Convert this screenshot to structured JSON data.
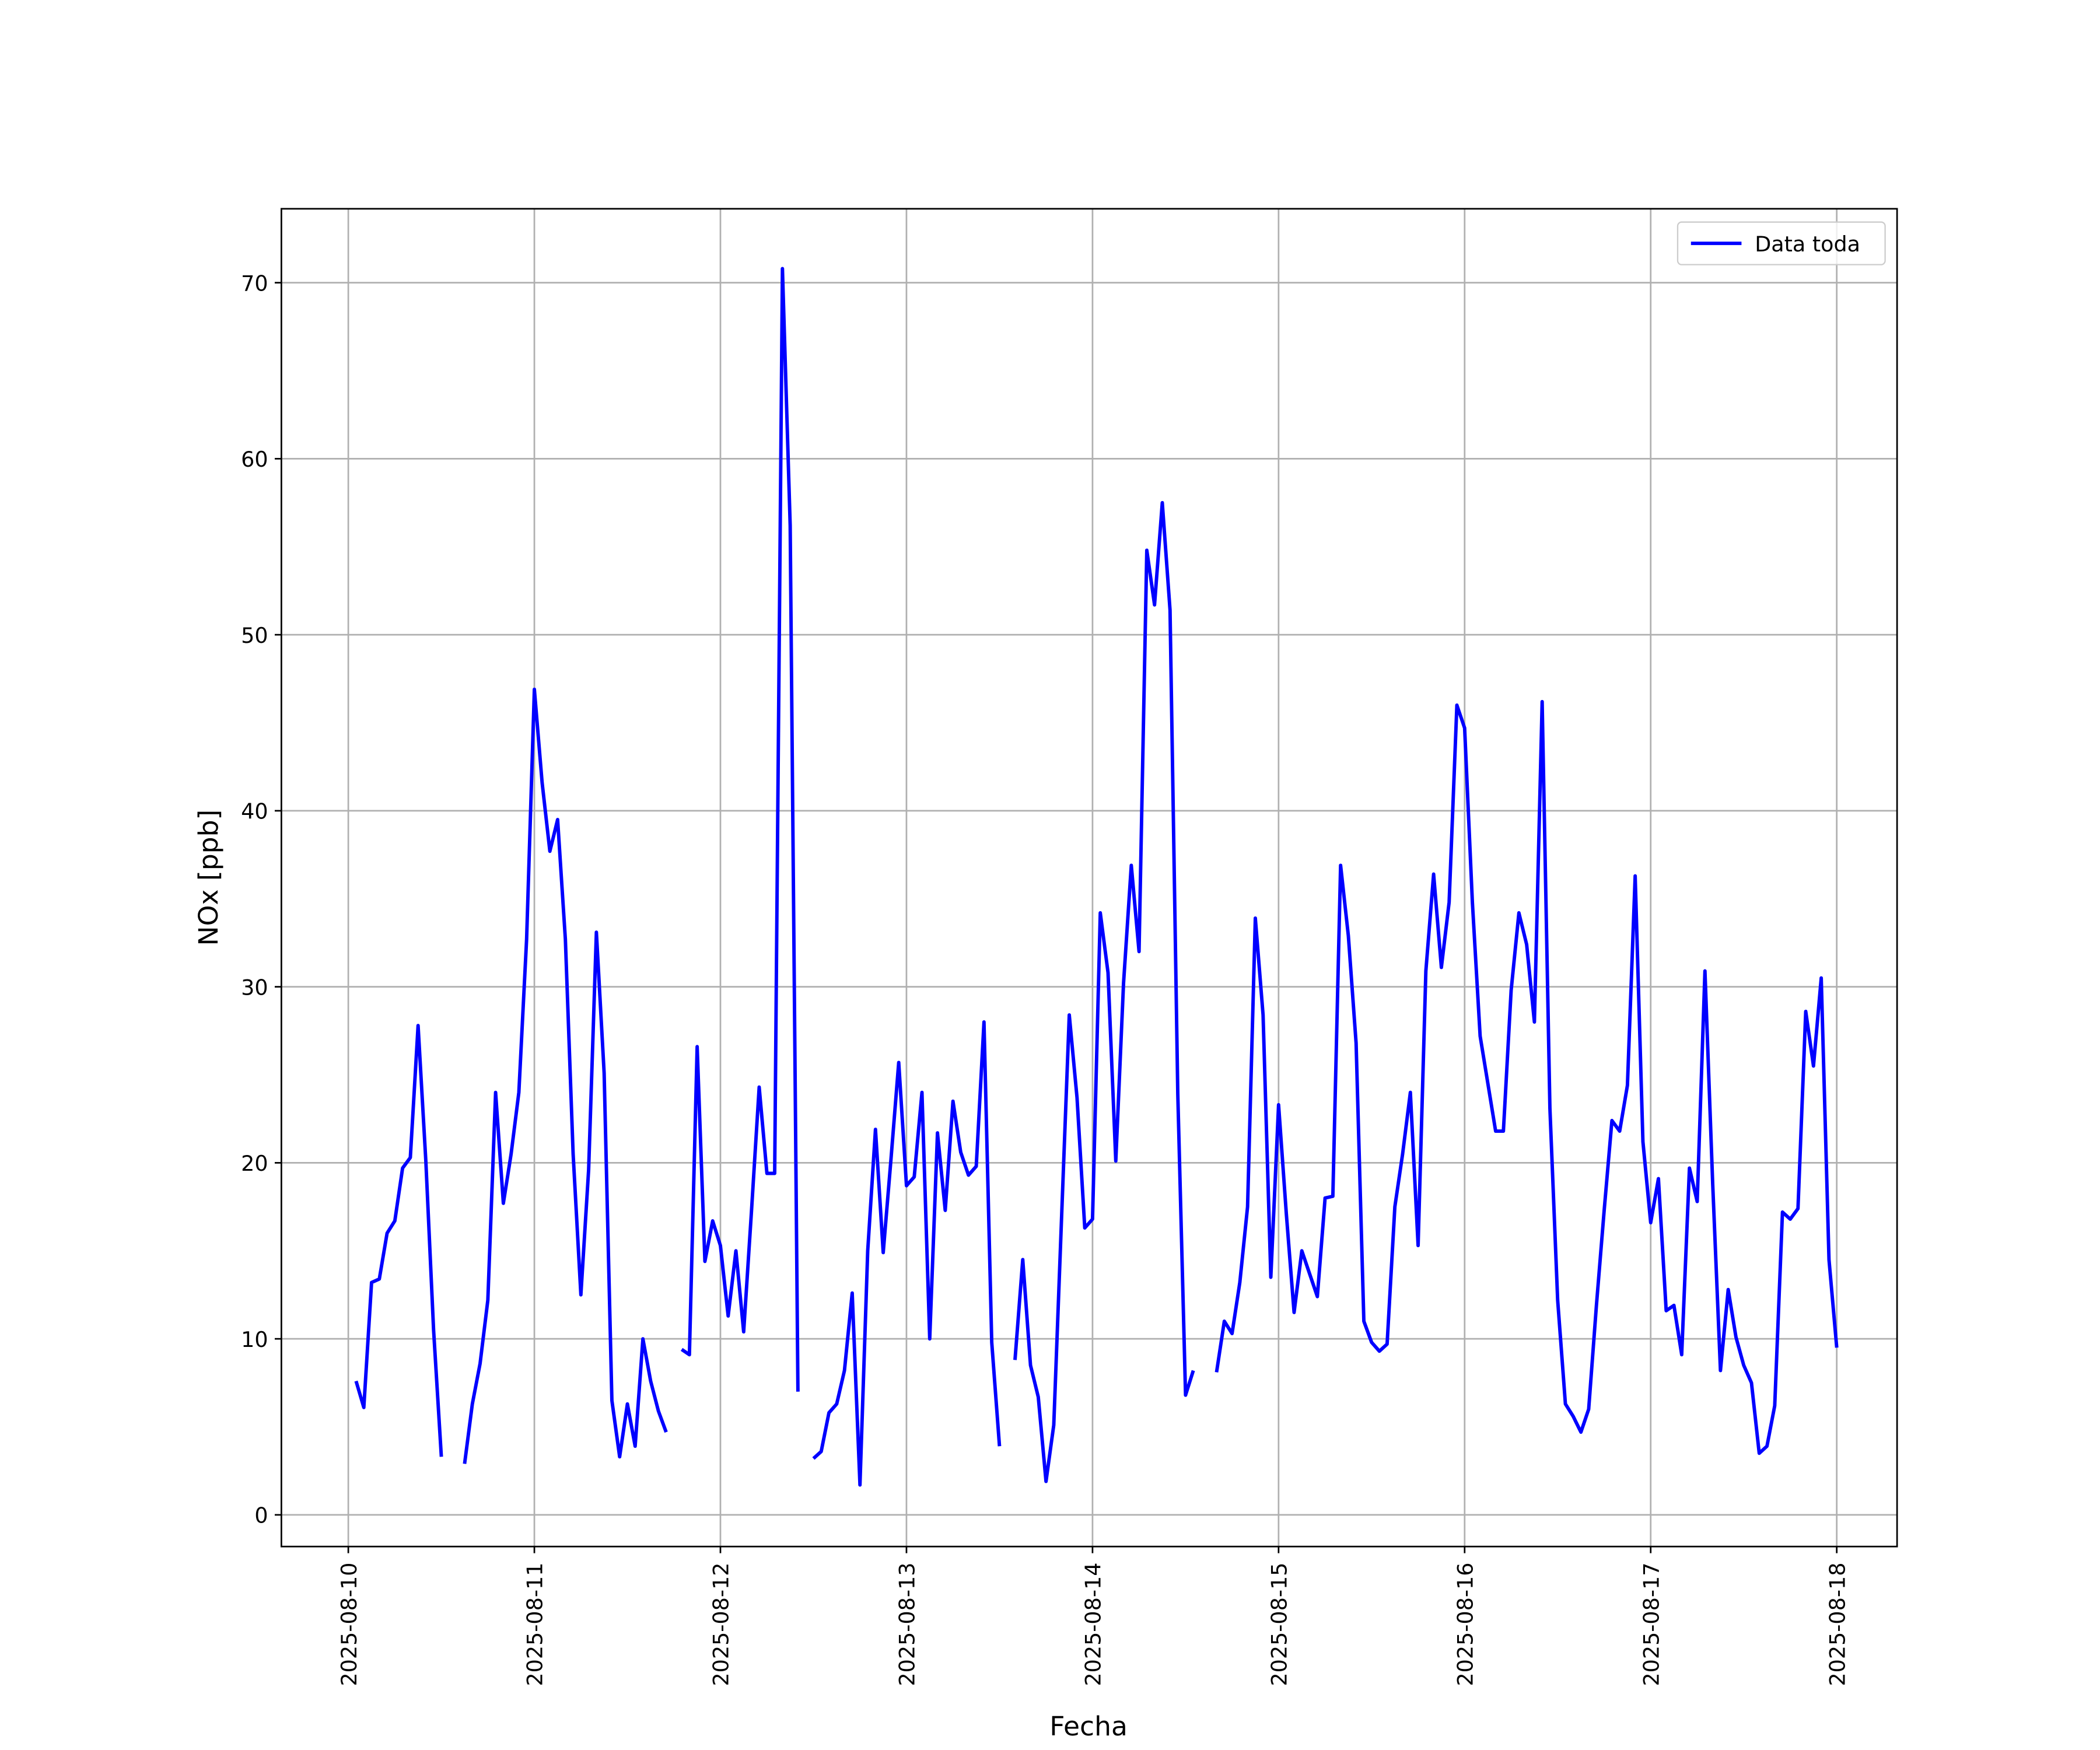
{
  "chart_data": {
    "type": "line",
    "x_label": "Fecha",
    "y_label": "NOx [ppb]",
    "x": [
      "2025-08-10T01:00",
      "2025-08-10T02:00",
      "2025-08-10T03:00",
      "2025-08-10T04:00",
      "2025-08-10T05:00",
      "2025-08-10T06:00",
      "2025-08-10T07:00",
      "2025-08-10T08:00",
      "2025-08-10T09:00",
      "2025-08-10T10:00",
      "2025-08-10T11:00",
      "2025-08-10T12:00",
      "2025-08-10T13:00",
      "2025-08-10T14:00",
      "2025-08-10T15:00",
      "2025-08-10T16:00",
      "2025-08-10T17:00",
      "2025-08-10T18:00",
      "2025-08-10T19:00",
      "2025-08-10T20:00",
      "2025-08-10T21:00",
      "2025-08-10T22:00",
      "2025-08-10T23:00",
      "2025-08-11T00:00",
      "2025-08-11T01:00",
      "2025-08-11T02:00",
      "2025-08-11T03:00",
      "2025-08-11T04:00",
      "2025-08-11T05:00",
      "2025-08-11T06:00",
      "2025-08-11T07:00",
      "2025-08-11T08:00",
      "2025-08-11T09:00",
      "2025-08-11T10:00",
      "2025-08-11T11:00",
      "2025-08-11T12:00",
      "2025-08-11T13:00",
      "2025-08-11T14:00",
      "2025-08-11T15:00",
      "2025-08-11T16:00",
      "2025-08-11T17:00",
      "2025-08-11T18:00",
      "2025-08-11T19:00",
      "2025-08-11T20:00",
      "2025-08-11T21:00",
      "2025-08-11T22:00",
      "2025-08-11T23:00",
      "2025-08-12T00:00",
      "2025-08-12T01:00",
      "2025-08-12T02:00",
      "2025-08-12T03:00",
      "2025-08-12T04:00",
      "2025-08-12T05:00",
      "2025-08-12T06:00",
      "2025-08-12T07:00",
      "2025-08-12T08:00",
      "2025-08-12T09:00",
      "2025-08-12T10:00",
      "2025-08-12T11:00",
      "2025-08-12T12:00",
      "2025-08-12T13:00",
      "2025-08-12T14:00",
      "2025-08-12T15:00",
      "2025-08-12T16:00",
      "2025-08-12T17:00",
      "2025-08-12T18:00",
      "2025-08-12T19:00",
      "2025-08-12T20:00",
      "2025-08-12T21:00",
      "2025-08-12T22:00",
      "2025-08-12T23:00",
      "2025-08-13T00:00",
      "2025-08-13T01:00",
      "2025-08-13T02:00",
      "2025-08-13T03:00",
      "2025-08-13T04:00",
      "2025-08-13T05:00",
      "2025-08-13T06:00",
      "2025-08-13T07:00",
      "2025-08-13T08:00",
      "2025-08-13T09:00",
      "2025-08-13T10:00",
      "2025-08-13T11:00",
      "2025-08-13T12:00",
      "2025-08-13T13:00",
      "2025-08-13T14:00",
      "2025-08-13T15:00",
      "2025-08-13T16:00",
      "2025-08-13T17:00",
      "2025-08-13T18:00",
      "2025-08-13T19:00",
      "2025-08-13T20:00",
      "2025-08-13T21:00",
      "2025-08-13T22:00",
      "2025-08-13T23:00",
      "2025-08-14T00:00",
      "2025-08-14T01:00",
      "2025-08-14T02:00",
      "2025-08-14T03:00",
      "2025-08-14T04:00",
      "2025-08-14T05:00",
      "2025-08-14T06:00",
      "2025-08-14T07:00",
      "2025-08-14T08:00",
      "2025-08-14T09:00",
      "2025-08-14T10:00",
      "2025-08-14T11:00",
      "2025-08-14T12:00",
      "2025-08-14T13:00",
      "2025-08-14T14:00",
      "2025-08-14T15:00",
      "2025-08-14T16:00",
      "2025-08-14T17:00",
      "2025-08-14T18:00",
      "2025-08-14T19:00",
      "2025-08-14T20:00",
      "2025-08-14T21:00",
      "2025-08-14T22:00",
      "2025-08-14T23:00",
      "2025-08-15T00:00",
      "2025-08-15T01:00",
      "2025-08-15T02:00",
      "2025-08-15T03:00",
      "2025-08-15T04:00",
      "2025-08-15T05:00",
      "2025-08-15T06:00",
      "2025-08-15T07:00",
      "2025-08-15T08:00",
      "2025-08-15T09:00",
      "2025-08-15T10:00",
      "2025-08-15T11:00",
      "2025-08-15T12:00",
      "2025-08-15T13:00",
      "2025-08-15T14:00",
      "2025-08-15T15:00",
      "2025-08-15T16:00",
      "2025-08-15T17:00",
      "2025-08-15T18:00",
      "2025-08-15T19:00",
      "2025-08-15T20:00",
      "2025-08-15T21:00",
      "2025-08-15T22:00",
      "2025-08-15T23:00",
      "2025-08-16T00:00",
      "2025-08-16T01:00",
      "2025-08-16T02:00",
      "2025-08-16T03:00",
      "2025-08-16T04:00",
      "2025-08-16T05:00",
      "2025-08-16T06:00",
      "2025-08-16T07:00",
      "2025-08-16T08:00",
      "2025-08-16T09:00",
      "2025-08-16T10:00",
      "2025-08-16T11:00",
      "2025-08-16T12:00",
      "2025-08-16T13:00",
      "2025-08-16T14:00",
      "2025-08-16T15:00",
      "2025-08-16T16:00",
      "2025-08-16T17:00",
      "2025-08-16T18:00",
      "2025-08-16T19:00",
      "2025-08-16T20:00",
      "2025-08-16T21:00",
      "2025-08-16T22:00",
      "2025-08-16T23:00",
      "2025-08-17T00:00",
      "2025-08-17T01:00",
      "2025-08-17T02:00",
      "2025-08-17T03:00",
      "2025-08-17T04:00",
      "2025-08-17T05:00",
      "2025-08-17T06:00",
      "2025-08-17T07:00",
      "2025-08-17T08:00",
      "2025-08-17T09:00",
      "2025-08-17T10:00",
      "2025-08-17T11:00",
      "2025-08-17T12:00",
      "2025-08-17T13:00",
      "2025-08-17T14:00",
      "2025-08-17T15:00",
      "2025-08-17T16:00",
      "2025-08-17T17:00",
      "2025-08-17T18:00",
      "2025-08-17T19:00",
      "2025-08-17T20:00",
      "2025-08-17T21:00",
      "2025-08-17T22:00",
      "2025-08-17T23:00",
      "2025-08-18T00:00"
    ],
    "series": [
      {
        "name": "Data toda",
        "color": "#0000ff",
        "values": [
          7.6,
          6.1,
          13.2,
          13.4,
          16.0,
          16.7,
          19.7,
          20.3,
          27.8,
          20.1,
          10.5,
          3.3,
          null,
          null,
          2.9,
          6.3,
          8.6,
          12.2,
          24.0,
          17.7,
          20.5,
          24.0,
          32.7,
          46.9,
          41.6,
          37.7,
          39.5,
          32.7,
          20.5,
          12.5,
          19.6,
          33.1,
          25.1,
          6.5,
          3.3,
          6.3,
          3.9,
          10.0,
          7.6,
          5.9,
          4.7,
          null,
          9.4,
          9.1,
          26.6,
          14.4,
          16.7,
          15.3,
          11.3,
          15.0,
          10.4,
          17.2,
          24.3,
          19.4,
          19.4,
          70.8,
          56.2,
          7.0,
          null,
          3.2,
          3.6,
          5.8,
          6.3,
          8.2,
          12.6,
          1.7,
          15.0,
          21.9,
          14.9,
          20.2,
          25.7,
          18.7,
          19.2,
          24.0,
          10.0,
          21.7,
          17.3,
          23.5,
          20.6,
          19.3,
          19.8,
          28.0,
          9.8,
          3.9,
          null,
          8.8,
          14.5,
          8.5,
          6.7,
          1.9,
          5.1,
          16.8,
          28.4,
          23.7,
          16.3,
          16.8,
          34.2,
          30.8,
          20.1,
          30.2,
          36.9,
          32.0,
          54.8,
          51.7,
          57.5,
          51.4,
          23.9,
          6.8,
          8.2,
          null,
          null,
          8.1,
          11.0,
          10.3,
          13.2,
          17.5,
          33.9,
          28.4,
          13.5,
          23.3,
          17.1,
          11.5,
          15.0,
          13.7,
          12.4,
          18.0,
          18.1,
          36.9,
          32.9,
          26.8,
          11.0,
          9.8,
          9.3,
          9.7,
          17.5,
          20.5,
          24.0,
          15.3,
          30.9,
          36.4,
          31.1,
          34.8,
          46.0,
          44.7,
          34.8,
          27.2,
          24.5,
          21.8,
          21.8,
          29.8,
          34.2,
          32.4,
          28.0,
          46.2,
          23.1,
          12.2,
          6.3,
          5.6,
          4.7,
          6.0,
          11.9,
          17.3,
          22.4,
          21.8,
          24.4,
          36.3,
          21.2,
          16.6,
          19.1,
          11.6,
          11.9,
          9.1,
          19.7,
          17.8,
          30.9,
          18.8,
          8.2,
          12.8,
          10.1,
          8.5,
          7.5,
          3.5,
          3.9,
          6.2,
          17.2,
          16.8,
          17.4,
          28.6,
          25.5,
          30.5,
          14.5,
          9.5
        ]
      }
    ],
    "xlim": [
      "2025-08-09T15:22",
      "2025-08-18T07:47"
    ],
    "xticks": [
      "2025-08-10",
      "2025-08-11",
      "2025-08-12",
      "2025-08-13",
      "2025-08-14",
      "2025-08-15",
      "2025-08-16",
      "2025-08-17",
      "2025-08-18"
    ],
    "ylim": [
      -1.8,
      74.2
    ],
    "yticks": [
      0,
      10,
      20,
      30,
      40,
      50,
      60,
      70
    ],
    "grid": true,
    "legend": "upper right"
  }
}
